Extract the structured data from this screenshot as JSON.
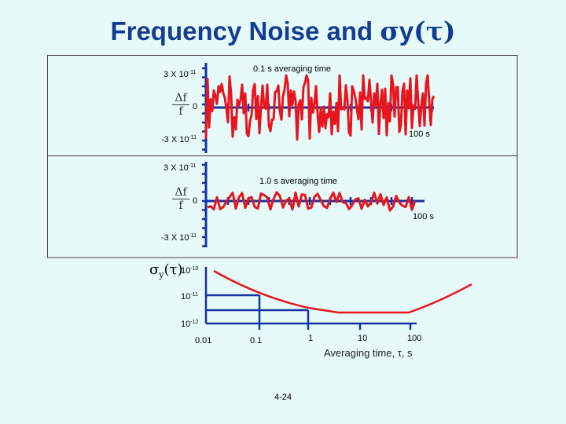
{
  "slide": {
    "title_prefix": "Frequency Noise and ",
    "title_sigma": "σ",
    "title_y": "y",
    "title_tau": "(τ)",
    "page_number": "4-24"
  },
  "panel1": {
    "caption": "0.1 s averaging time",
    "y_top_mantissa": "3 X 10",
    "y_top_exp": "-11",
    "y_zero": "0",
    "y_bottom_mantissa": "-3 X 10",
    "y_bottom_exp": "-11",
    "x_end_label": "100 s",
    "frac_num": "Δf",
    "frac_den": "f"
  },
  "panel2": {
    "caption": "1.0 s averaging time",
    "y_top_mantissa": "3 X 10",
    "y_top_exp": "-11",
    "y_zero": "0",
    "y_bottom_mantissa": "-3 X 10",
    "y_bottom_exp": "-11",
    "x_end_label": "100 s",
    "frac_num": "Δf",
    "frac_den": "f"
  },
  "panel3": {
    "sigma": "σ",
    "sigma_sub": "y",
    "sigma_tau": "(τ)",
    "y_ticks": [
      {
        "mantissa": "10",
        "exp": "-10"
      },
      {
        "mantissa": "10",
        "exp": "-11"
      },
      {
        "mantissa": "10",
        "exp": "-12"
      }
    ],
    "x_ticks": [
      "0.01",
      "0.1",
      "1",
      "10",
      "100"
    ],
    "x_label": "Averaging time, τ, s"
  },
  "colors": {
    "title": "#143c96",
    "trace": "#e8141e",
    "axis": "#1432a0",
    "background": "#e6fbf9"
  }
}
